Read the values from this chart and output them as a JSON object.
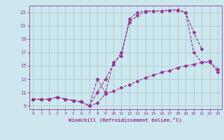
{
  "xlabel": "Windchill (Refroidissement éolien,°C)",
  "bg_color": "#cce8ee",
  "grid_color": "#aacccc",
  "line_color": "#993399",
  "line1_x": [
    0,
    1,
    2,
    3,
    4,
    5,
    6,
    7,
    8,
    9,
    10,
    11,
    12,
    13,
    14,
    15,
    16,
    17,
    18,
    19,
    20,
    21,
    22,
    23
  ],
  "line1_y": [
    10.0,
    10.0,
    10.0,
    10.3,
    10.0,
    9.8,
    9.6,
    9.0,
    9.4,
    10.8,
    11.2,
    11.7,
    12.2,
    12.7,
    13.2,
    13.6,
    14.0,
    14.3,
    14.7,
    15.0,
    15.2,
    15.5,
    15.7,
    14.0
  ],
  "line2_x": [
    0,
    1,
    2,
    3,
    4,
    5,
    6,
    7,
    8,
    9,
    10,
    11,
    12,
    13,
    14,
    15,
    16,
    17,
    18,
    19,
    20,
    21,
    22,
    23
  ],
  "line2_y": [
    10.0,
    10.0,
    10.0,
    10.3,
    10.0,
    9.8,
    9.6,
    9.0,
    11.0,
    13.0,
    15.2,
    17.0,
    21.5,
    22.5,
    23.1,
    23.2,
    23.2,
    23.3,
    23.3,
    23.0,
    17.0,
    15.5,
    15.5,
    14.5
  ],
  "line3_x": [
    0,
    1,
    2,
    3,
    4,
    5,
    6,
    7,
    8,
    9,
    10,
    11,
    12,
    13,
    14,
    15,
    16,
    17,
    18,
    19,
    20,
    21,
    22,
    23
  ],
  "line3_y": [
    10.0,
    10.0,
    10.0,
    10.3,
    10.0,
    9.8,
    9.6,
    9.0,
    13.0,
    11.0,
    15.5,
    16.5,
    22.0,
    23.0,
    23.2,
    23.2,
    23.2,
    23.3,
    23.4,
    23.0,
    20.0,
    17.5,
    null,
    null
  ],
  "xlim": [
    -0.5,
    23.5
  ],
  "ylim": [
    8.5,
    24.0
  ],
  "yticks": [
    9,
    11,
    13,
    15,
    17,
    19,
    21,
    23
  ],
  "xticks": [
    0,
    1,
    2,
    3,
    4,
    5,
    6,
    7,
    8,
    9,
    10,
    11,
    12,
    13,
    14,
    15,
    16,
    17,
    18,
    19,
    20,
    21,
    22,
    23
  ]
}
